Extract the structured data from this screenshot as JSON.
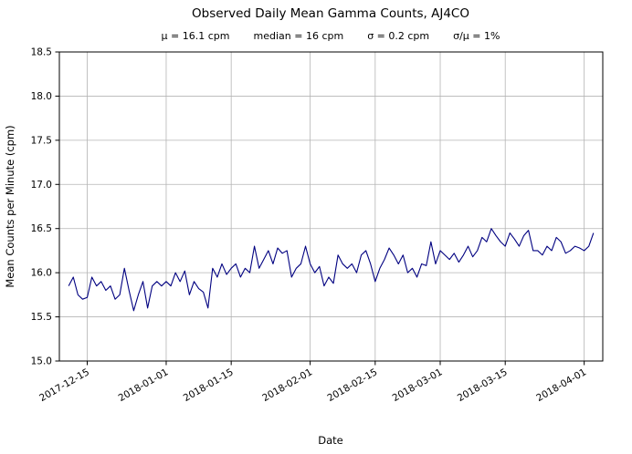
{
  "chart_data": {
    "type": "line",
    "title": "Observed Daily Mean Gamma Counts, AJ4CO",
    "stats_items": [
      "μ = 16.1 cpm",
      "median = 16 cpm",
      "σ = 0.2 cpm",
      "σ/μ = 1%"
    ],
    "stats": {
      "mean_cpm": 16.1,
      "median_cpm": 16,
      "sigma_cpm": 0.2,
      "sigma_over_mu_pct": 1
    },
    "xlabel": "Date",
    "ylabel": "Mean Counts per Minute (cpm)",
    "ylim": [
      15.0,
      18.5
    ],
    "ytick_step": 0.5,
    "xlim": [
      "2017-12-09",
      "2018-04-05"
    ],
    "x_ticks": [
      "2017-12-15",
      "2018-01-01",
      "2018-01-15",
      "2018-02-01",
      "2018-02-15",
      "2018-03-01",
      "2018-03-15",
      "2018-04-01"
    ],
    "grid": true,
    "legend": false,
    "line_color": "#000080",
    "series": [
      {
        "name": "AJ4CO daily mean gamma counts",
        "color": "#000080",
        "x_start": "2017-12-11",
        "cadence": "daily",
        "values": [
          15.85,
          15.95,
          15.75,
          15.7,
          15.72,
          15.95,
          15.85,
          15.9,
          15.8,
          15.85,
          15.7,
          15.75,
          16.05,
          15.8,
          15.57,
          15.75,
          15.9,
          15.6,
          15.85,
          15.9,
          15.85,
          15.9,
          15.85,
          16.0,
          15.9,
          16.02,
          15.75,
          15.9,
          15.82,
          15.78,
          15.6,
          16.05,
          15.95,
          16.1,
          15.98,
          16.05,
          16.1,
          15.95,
          16.05,
          16.0,
          16.3,
          16.05,
          16.15,
          16.25,
          16.1,
          16.28,
          16.22,
          16.25,
          15.95,
          16.05,
          16.1,
          16.3,
          16.1,
          16.0,
          16.07,
          15.85,
          15.95,
          15.88,
          16.2,
          16.1,
          16.05,
          16.1,
          16.0,
          16.2,
          16.25,
          16.1,
          15.9,
          16.05,
          16.15,
          16.28,
          16.2,
          16.1,
          16.2,
          16.0,
          16.05,
          15.95,
          16.1,
          16.08,
          16.35,
          16.1,
          16.25,
          16.2,
          16.15,
          16.22,
          16.12,
          16.2,
          16.3,
          16.18,
          16.25,
          16.4,
          16.35,
          16.5,
          16.42,
          16.35,
          16.3,
          16.45,
          16.38,
          16.3,
          16.42,
          16.48,
          16.25,
          16.25,
          16.2,
          16.3,
          16.25,
          16.4,
          16.35,
          16.22,
          16.25,
          16.3,
          16.28,
          16.25,
          16.3,
          16.45
        ]
      }
    ]
  }
}
